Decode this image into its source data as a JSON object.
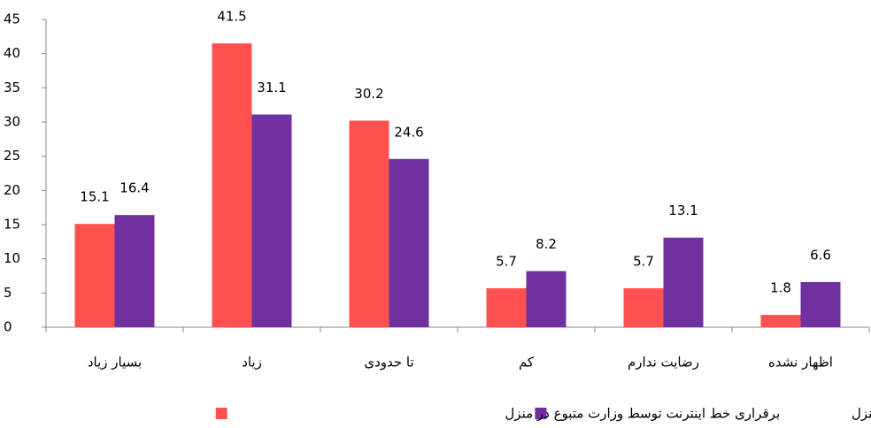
{
  "chart_data": {
    "type": "bar",
    "categories": [
      "بسیار زیاد",
      "زیاد",
      "تا حدودی",
      "کم",
      "رضایت ندارم",
      "اظهار نشده"
    ],
    "series": [
      {
        "name": "برقراری خط اینترنت توسط وزارت متبوع در منزل",
        "color": "#ff5050",
        "values": [
          15.1,
          41.5,
          30.2,
          5.7,
          5.7,
          1.8
        ]
      },
      {
        "name": "عدم برقراری خط اینترنت توسط وزارت متبوع در منزل",
        "color": "#7030a0",
        "values": [
          16.4,
          31.1,
          24.6,
          8.2,
          13.1,
          6.6
        ]
      }
    ],
    "ylim": [
      0,
      45
    ],
    "yticks": [
      0,
      5,
      10,
      15,
      20,
      25,
      30,
      35,
      40,
      45
    ],
    "grid": false,
    "legend": "bottom"
  }
}
